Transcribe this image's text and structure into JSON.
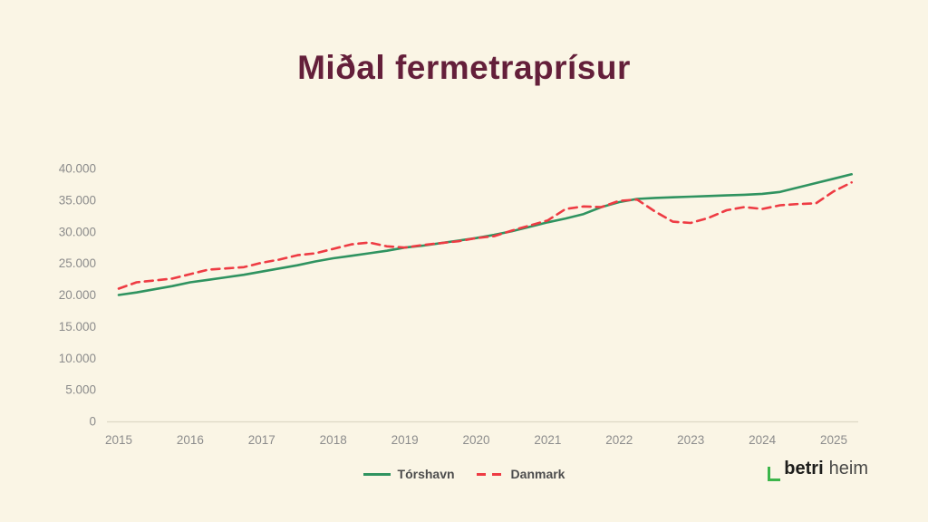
{
  "title": "Miðal fermetraprísur",
  "colors": {
    "background": "#faf5e5",
    "title": "#641f3a",
    "axis_text": "#8c8c8c",
    "axis_line": "#ddd8c5",
    "legend_text": "#4d4d4d",
    "torshavn_green": "#2f9360",
    "danmark_red": "#ee3b43",
    "logo_green": "#3cb54a",
    "logo_text": "#1d1d1b",
    "logo_text_secondary": "#4a4a48"
  },
  "logo": {
    "betri": "betri",
    "heim": "heim"
  },
  "chart_data": {
    "type": "line",
    "title": "Miðal fermetraprísur",
    "xlabel": "",
    "ylabel": "",
    "grid": false,
    "legend_position": "bottom",
    "xlim": [
      2015,
      2025.4
    ],
    "ylim": [
      0,
      40000
    ],
    "xticks": [
      2015,
      2016,
      2017,
      2018,
      2019,
      2020,
      2021,
      2022,
      2023,
      2024,
      2025
    ],
    "yticks": [
      0,
      5000,
      10000,
      15000,
      20000,
      25000,
      30000,
      35000,
      40000
    ],
    "ytick_labels": [
      "0",
      "5.000",
      "10.000",
      "15.000",
      "20.000",
      "25.000",
      "30.000",
      "35.000",
      "40.000"
    ],
    "x": [
      2015.0,
      2015.25,
      2015.5,
      2015.75,
      2016.0,
      2016.25,
      2016.5,
      2016.75,
      2017.0,
      2017.25,
      2017.5,
      2017.75,
      2018.0,
      2018.25,
      2018.5,
      2018.75,
      2019.0,
      2019.25,
      2019.5,
      2019.75,
      2020.0,
      2020.25,
      2020.5,
      2020.75,
      2021.0,
      2021.25,
      2021.5,
      2021.75,
      2022.0,
      2022.25,
      2022.5,
      2022.75,
      2023.0,
      2023.25,
      2023.5,
      2023.75,
      2024.0,
      2024.25,
      2024.5,
      2024.75,
      2025.0,
      2025.25
    ],
    "series": [
      {
        "name": "Tórshavn",
        "key": "torshavn",
        "color": "#2f9360",
        "style": "solid",
        "values": [
          20000,
          20400,
          20900,
          21400,
          22000,
          22400,
          22800,
          23200,
          23700,
          24200,
          24700,
          25300,
          25800,
          26200,
          26600,
          27000,
          27500,
          27800,
          28200,
          28600,
          29000,
          29500,
          30100,
          30800,
          31500,
          32100,
          32800,
          33900,
          34700,
          35200,
          35350,
          35450,
          35550,
          35650,
          35750,
          35850,
          36000,
          36300,
          37000,
          37700,
          38400,
          39100
        ]
      },
      {
        "name": "Danmark",
        "key": "danmark",
        "color": "#ee3b43",
        "style": "dashed",
        "values": [
          21000,
          22000,
          22300,
          22600,
          23300,
          24000,
          24200,
          24400,
          25100,
          25600,
          26300,
          26600,
          27300,
          28000,
          28300,
          27700,
          27500,
          27900,
          28200,
          28500,
          29000,
          29300,
          30200,
          31000,
          31800,
          33600,
          34000,
          33900,
          34900,
          35100,
          33200,
          31600,
          31400,
          32200,
          33400,
          33900,
          33600,
          34200,
          34400,
          34500,
          36400,
          37800
        ]
      }
    ]
  }
}
